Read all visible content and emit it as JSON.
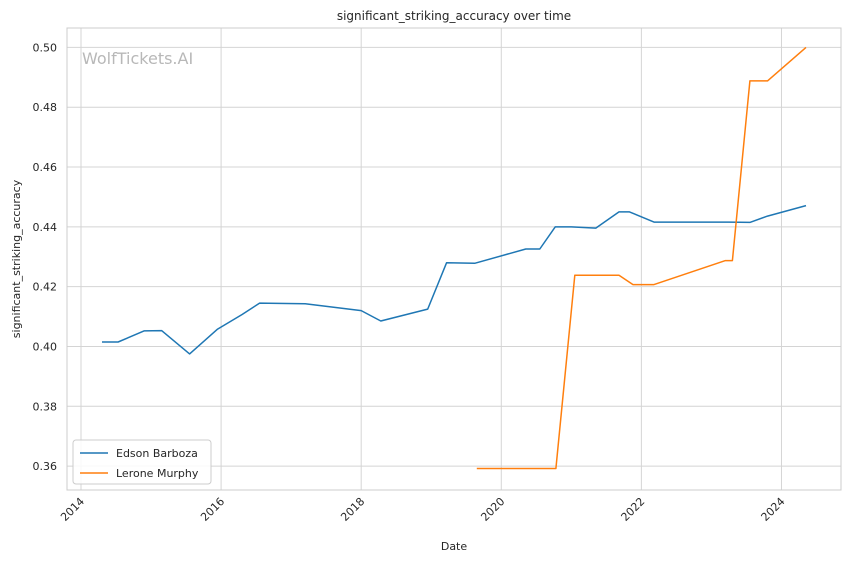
{
  "chart_data": {
    "type": "line",
    "title": "significant_striking_accuracy over time",
    "xlabel": "Date",
    "ylabel": "significant_striking_accuracy",
    "watermark": "WolfTickets.AI",
    "xlim": [
      2013.8,
      2024.85
    ],
    "ylim": [
      0.352,
      0.5065
    ],
    "x_ticks": [
      2014,
      2016,
      2018,
      2020,
      2022,
      2024
    ],
    "y_ticks": [
      0.36,
      0.38,
      0.4,
      0.42,
      0.44,
      0.46,
      0.48,
      0.5
    ],
    "y_tick_labels": [
      "0.36",
      "0.38",
      "0.40",
      "0.42",
      "0.44",
      "0.46",
      "0.48",
      "0.50"
    ],
    "grid": true,
    "legend_position": "lower-left",
    "colors": {
      "Edson Barboza": "#1f77b4",
      "Lerone Murphy": "#ff7f0e"
    },
    "series": [
      {
        "name": "Edson Barboza",
        "x": [
          2014.3,
          2014.53,
          2014.9,
          2015.15,
          2015.55,
          2015.95,
          2016.3,
          2016.55,
          2017.2,
          2018.0,
          2018.28,
          2018.95,
          2019.22,
          2019.62,
          2020.35,
          2020.55,
          2020.77,
          2021.0,
          2021.35,
          2021.68,
          2021.83,
          2022.18,
          2023.25,
          2023.55,
          2023.8,
          2024.35
        ],
        "y": [
          0.4015,
          0.4015,
          0.4052,
          0.4053,
          0.3975,
          0.4058,
          0.4107,
          0.4145,
          0.4143,
          0.412,
          0.4085,
          0.4125,
          0.428,
          0.4278,
          0.4326,
          0.4326,
          0.44,
          0.44,
          0.4396,
          0.445,
          0.445,
          0.4416,
          0.4416,
          0.4415,
          0.4436,
          0.4471
        ]
      },
      {
        "name": "Lerone Murphy",
        "x": [
          2019.65,
          2020.78,
          2021.05,
          2021.68,
          2021.88,
          2022.18,
          2023.2,
          2023.3,
          2023.55,
          2023.8,
          2024.35
        ],
        "y": [
          0.3592,
          0.3592,
          0.4238,
          0.4238,
          0.4207,
          0.4207,
          0.4287,
          0.4287,
          0.4888,
          0.4888,
          0.5
        ]
      }
    ]
  }
}
